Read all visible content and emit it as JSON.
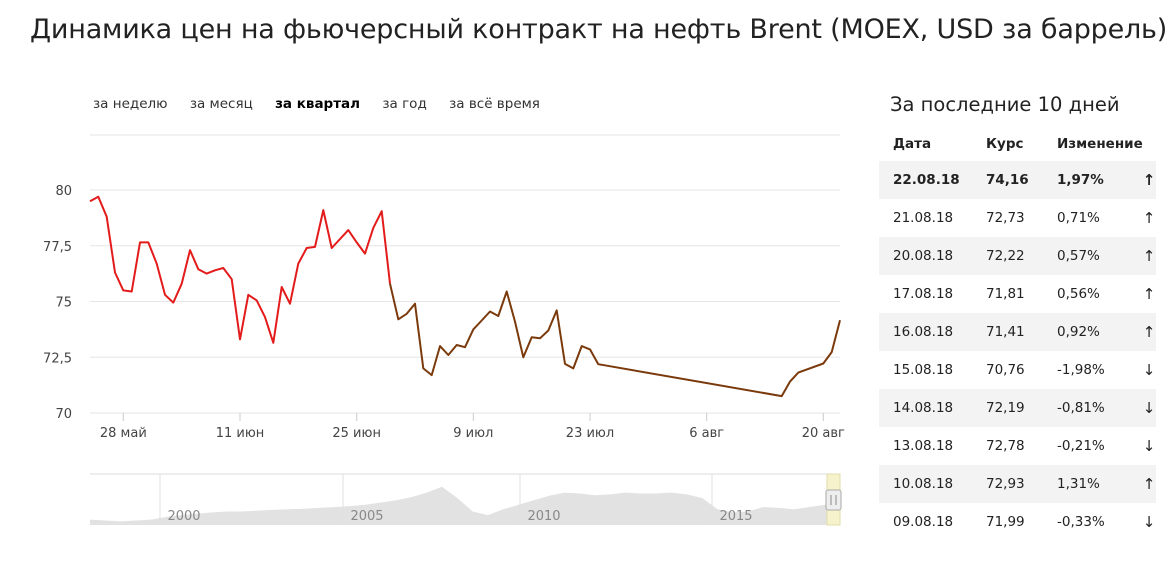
{
  "title": "Динамика цен на фьючерсный контракт на нефть Brent (MOEX, USD за баррель)",
  "periods": [
    {
      "label": "за неделю",
      "active": false
    },
    {
      "label": "за месяц",
      "active": false
    },
    {
      "label": "за квартал",
      "active": true
    },
    {
      "label": "за год",
      "active": false
    },
    {
      "label": "за всё время",
      "active": false
    }
  ],
  "sidebar": {
    "title": "За последние 10 дней",
    "headers": [
      "Дата",
      "Курс",
      "Изменение"
    ],
    "rows": [
      {
        "date": "22.08.18",
        "rate": "74,16",
        "change": "1,97%",
        "dir": "up",
        "arrow": "↑"
      },
      {
        "date": "21.08.18",
        "rate": "72,73",
        "change": "0,71%",
        "dir": "up",
        "arrow": "↑"
      },
      {
        "date": "20.08.18",
        "rate": "72,22",
        "change": "0,57%",
        "dir": "up",
        "arrow": "↑"
      },
      {
        "date": "17.08.18",
        "rate": "71,81",
        "change": "0,56%",
        "dir": "up",
        "arrow": "↑"
      },
      {
        "date": "16.08.18",
        "rate": "71,41",
        "change": "0,92%",
        "dir": "up",
        "arrow": "↑"
      },
      {
        "date": "15.08.18",
        "rate": "70,76",
        "change": "-1,98%",
        "dir": "down",
        "arrow": "↓"
      },
      {
        "date": "14.08.18",
        "rate": "72,19",
        "change": "-0,81%",
        "dir": "down",
        "arrow": "↓"
      },
      {
        "date": "13.08.18",
        "rate": "72,78",
        "change": "-0,21%",
        "dir": "down",
        "arrow": "↓"
      },
      {
        "date": "10.08.18",
        "rate": "72,93",
        "change": "1,31%",
        "dir": "up",
        "arrow": "↑"
      },
      {
        "date": "09.08.18",
        "rate": "71,99",
        "change": "-0,33%",
        "dir": "down",
        "arrow": "↓"
      }
    ]
  },
  "colors": {
    "line_early": "#e31b1b",
    "line_late": "#7a3a0c",
    "grid": "#e6e6e6",
    "up": "#2ecc40",
    "down": "#9b7800",
    "navigator_area": "#e2e2e2"
  },
  "chart_data": {
    "type": "line",
    "ylim": [
      70,
      80
    ],
    "yticks": [
      "80",
      "77,5",
      "75",
      "72,5",
      "70"
    ],
    "ytick_values": [
      80,
      77.5,
      75,
      72.5,
      70
    ],
    "xlim": [
      "2018-05-24",
      "2018-08-22"
    ],
    "xticks": [
      {
        "date": "2018-05-28",
        "label": "28 май"
      },
      {
        "date": "2018-06-11",
        "label": "11 июн"
      },
      {
        "date": "2018-06-25",
        "label": "25 июн"
      },
      {
        "date": "2018-07-09",
        "label": "9 июл"
      },
      {
        "date": "2018-07-23",
        "label": "23 июл"
      },
      {
        "date": "2018-08-06",
        "label": "6 авг"
      },
      {
        "date": "2018-08-20",
        "label": "20 авг"
      }
    ],
    "series": [
      {
        "points": [
          [
            "2018-05-24",
            79.5
          ],
          [
            "2018-05-25",
            79.7
          ],
          [
            "2018-05-26",
            78.8
          ],
          [
            "2018-05-27",
            76.3
          ],
          [
            "2018-05-28",
            75.5
          ],
          [
            "2018-05-29",
            75.45
          ],
          [
            "2018-05-30",
            77.65
          ],
          [
            "2018-05-31",
            77.65
          ],
          [
            "2018-06-01",
            76.7
          ],
          [
            "2018-06-02",
            75.3
          ],
          [
            "2018-06-03",
            74.95
          ],
          [
            "2018-06-04",
            75.8
          ],
          [
            "2018-06-05",
            77.3
          ],
          [
            "2018-06-06",
            76.45
          ],
          [
            "2018-06-07",
            76.25
          ],
          [
            "2018-06-08",
            76.4
          ],
          [
            "2018-06-09",
            76.5
          ],
          [
            "2018-06-10",
            76.0
          ],
          [
            "2018-06-11",
            73.3
          ],
          [
            "2018-06-12",
            75.3
          ],
          [
            "2018-06-13",
            75.05
          ],
          [
            "2018-06-14",
            74.3
          ],
          [
            "2018-06-15",
            73.15
          ],
          [
            "2018-06-16",
            75.65
          ],
          [
            "2018-06-17",
            74.9
          ],
          [
            "2018-06-18",
            76.7
          ],
          [
            "2018-06-19",
            77.4
          ],
          [
            "2018-06-20",
            77.45
          ],
          [
            "2018-06-21",
            79.1
          ],
          [
            "2018-06-22",
            77.4
          ],
          [
            "2018-06-24",
            78.2
          ],
          [
            "2018-06-25",
            77.65
          ],
          [
            "2018-06-26",
            77.15
          ],
          [
            "2018-06-27",
            78.3
          ],
          [
            "2018-06-28",
            79.05
          ],
          [
            "2018-06-29",
            75.8
          ]
        ]
      },
      {
        "points": [
          [
            "2018-06-29",
            75.8
          ],
          [
            "2018-06-30",
            74.2
          ],
          [
            "2018-07-01",
            74.45
          ],
          [
            "2018-07-02",
            74.9
          ],
          [
            "2018-07-03",
            72.0
          ],
          [
            "2018-07-04",
            71.7
          ],
          [
            "2018-07-05",
            73.0
          ],
          [
            "2018-07-06",
            72.6
          ],
          [
            "2018-07-07",
            73.05
          ],
          [
            "2018-07-08",
            72.95
          ],
          [
            "2018-07-09",
            73.75
          ],
          [
            "2018-07-10",
            74.15
          ],
          [
            "2018-07-11",
            74.55
          ],
          [
            "2018-07-12",
            74.35
          ],
          [
            "2018-07-13",
            75.45
          ],
          [
            "2018-07-14",
            74.1
          ],
          [
            "2018-07-15",
            72.5
          ],
          [
            "2018-07-16",
            73.4
          ],
          [
            "2018-07-17",
            73.35
          ],
          [
            "2018-07-18",
            73.7
          ],
          [
            "2018-07-19",
            74.6
          ],
          [
            "2018-07-20",
            72.2
          ],
          [
            "2018-07-21",
            72.0
          ],
          [
            "2018-07-22",
            73.0
          ],
          [
            "2018-07-23",
            72.85
          ],
          [
            "2018-07-24",
            72.19
          ],
          [
            "2018-08-15",
            70.76
          ],
          [
            "2018-08-16",
            71.41
          ],
          [
            "2018-08-17",
            71.81
          ],
          [
            "2018-08-20",
            72.22
          ],
          [
            "2018-08-21",
            72.73
          ],
          [
            "2018-08-22",
            74.16
          ]
        ]
      }
    ],
    "navigator": {
      "xticks": [
        "2000",
        "2005",
        "2010",
        "2015"
      ]
    }
  }
}
